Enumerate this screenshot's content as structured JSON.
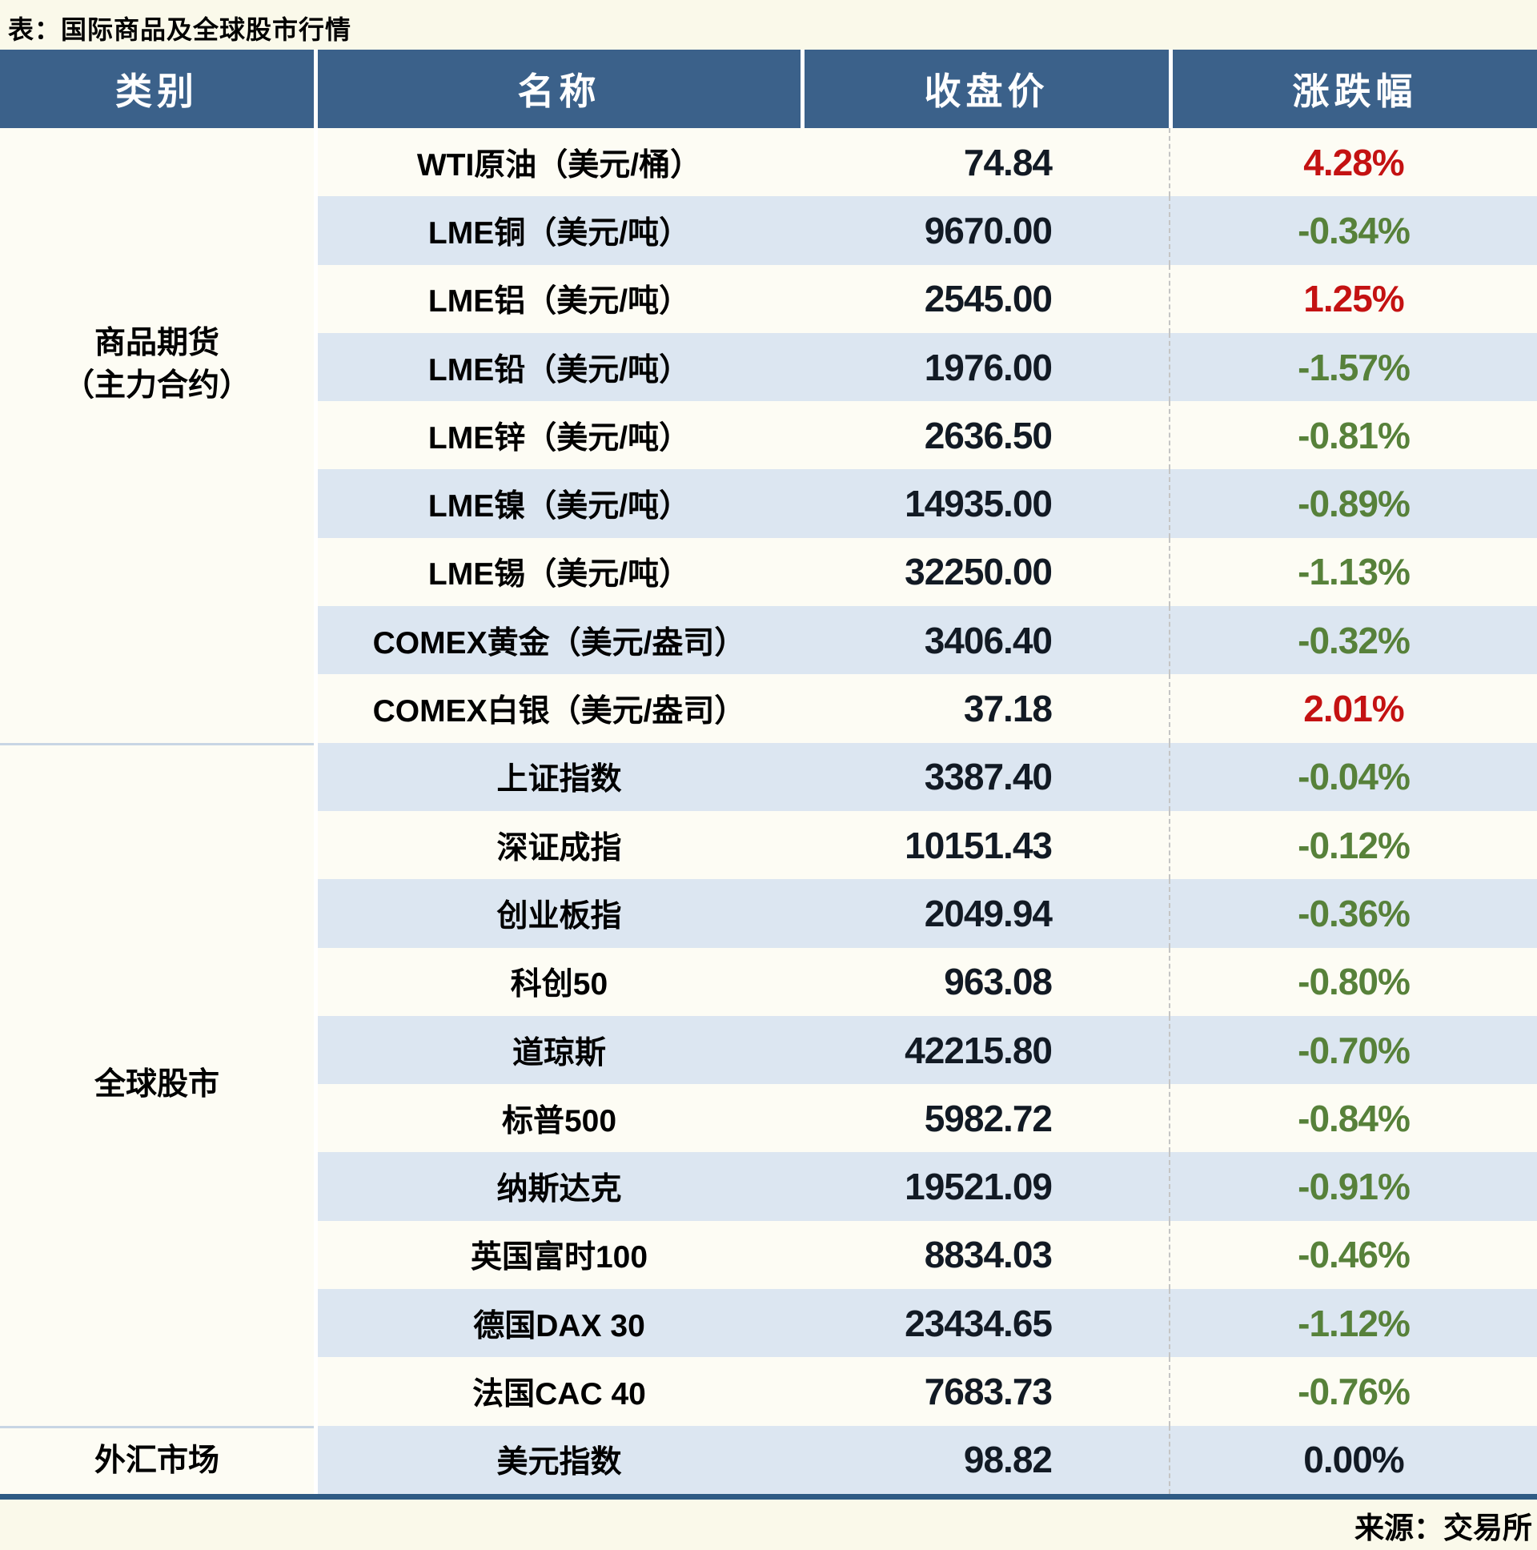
{
  "chart_data": {
    "type": "table",
    "title": "表：国际商品及全球股市行情",
    "source_note": "来源：交易所",
    "columns": [
      "类别",
      "名称",
      "收盘价",
      "涨跌幅"
    ],
    "groups": [
      {
        "category_lines": [
          "商品期货",
          "（主力合约）"
        ],
        "raised_label": true,
        "rows": [
          {
            "name": "WTI原油（美元/桶）",
            "close": "74.84",
            "change": "4.28%",
            "direction": "up"
          },
          {
            "name": "LME铜（美元/吨）",
            "close": "9670.00",
            "change": "-0.34%",
            "direction": "down"
          },
          {
            "name": "LME铝（美元/吨）",
            "close": "2545.00",
            "change": "1.25%",
            "direction": "up"
          },
          {
            "name": "LME铅（美元/吨）",
            "close": "1976.00",
            "change": "-1.57%",
            "direction": "down"
          },
          {
            "name": "LME锌（美元/吨）",
            "close": "2636.50",
            "change": "-0.81%",
            "direction": "down"
          },
          {
            "name": "LME镍（美元/吨）",
            "close": "14935.00",
            "change": "-0.89%",
            "direction": "down"
          },
          {
            "name": "LME锡（美元/吨）",
            "close": "32250.00",
            "change": "-1.13%",
            "direction": "down"
          },
          {
            "name": "COMEX黄金（美元/盎司）",
            "close": "3406.40",
            "change": "-0.32%",
            "direction": "down"
          },
          {
            "name": "COMEX白银（美元/盎司）",
            "close": "37.18",
            "change": "2.01%",
            "direction": "up"
          }
        ]
      },
      {
        "category_lines": [
          "全球股市"
        ],
        "raised_label": false,
        "rows": [
          {
            "name": "上证指数",
            "close": "3387.40",
            "change": "-0.04%",
            "direction": "down"
          },
          {
            "name": "深证成指",
            "close": "10151.43",
            "change": "-0.12%",
            "direction": "down"
          },
          {
            "name": "创业板指",
            "close": "2049.94",
            "change": "-0.36%",
            "direction": "down"
          },
          {
            "name": "科创50",
            "close": "963.08",
            "change": "-0.80%",
            "direction": "down"
          },
          {
            "name": "道琼斯",
            "close": "42215.80",
            "change": "-0.70%",
            "direction": "down"
          },
          {
            "name": "标普500",
            "close": "5982.72",
            "change": "-0.84%",
            "direction": "down"
          },
          {
            "name": "纳斯达克",
            "close": "19521.09",
            "change": "-0.91%",
            "direction": "down"
          },
          {
            "name": "英国富时100",
            "close": "8834.03",
            "change": "-0.46%",
            "direction": "down"
          },
          {
            "name": "德国DAX 30",
            "close": "23434.65",
            "change": "-1.12%",
            "direction": "down"
          },
          {
            "name": "法国CAC 40",
            "close": "7683.73",
            "change": "-0.76%",
            "direction": "down"
          }
        ]
      },
      {
        "category_lines": [
          "外汇市场"
        ],
        "raised_label": false,
        "rows": [
          {
            "name": "美元指数",
            "close": "98.82",
            "change": "0.00%",
            "direction": "flat"
          }
        ]
      }
    ]
  },
  "colors": {
    "header_bg": "#3B618A",
    "row_alt_blue": "#DCE6F1",
    "row_base_white": "#FDFCF4",
    "page_bg": "#FAF9EA",
    "up_red": "#C41212",
    "down_green": "#57813A",
    "flat_dark": "#121A24",
    "bottom_border_blue": "#2F5B84",
    "group_divider": "#C8D5E4"
  }
}
